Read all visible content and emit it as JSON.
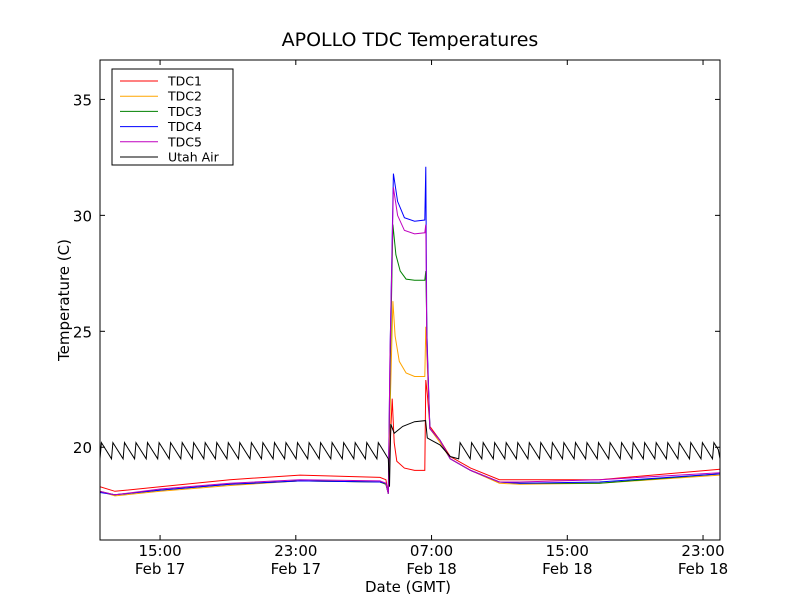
{
  "chart_data": {
    "type": "line",
    "title": "APOLLO TDC Temperatures",
    "xlabel": "Date (GMT)",
    "ylabel": "Temperature (C)",
    "x_units": "hours since Feb 17 00:00 GMT",
    "xlim": [
      11.46,
      48.0
    ],
    "ylim": [
      16.0,
      36.7
    ],
    "grid": false,
    "legend_placement": "top-left",
    "yticks": [
      20,
      25,
      30,
      35
    ],
    "xticks": [
      {
        "value": 15,
        "line1": "15:00",
        "line2": "Feb 17"
      },
      {
        "value": 23,
        "line1": "23:00",
        "line2": "Feb 17"
      },
      {
        "value": 31,
        "line1": "07:00",
        "line2": "Feb 18"
      },
      {
        "value": 39,
        "line1": "15:00",
        "line2": "Feb 18"
      },
      {
        "value": 47,
        "line1": "23:00",
        "line2": "Feb 18"
      }
    ],
    "series": [
      {
        "name": "TDC1",
        "color": "#ff0000",
        "points": [
          [
            11.46,
            18.3
          ],
          [
            12.34,
            18.1
          ],
          [
            15,
            18.3
          ],
          [
            19.12,
            18.6
          ],
          [
            23.25,
            18.8
          ],
          [
            27.96,
            18.7
          ],
          [
            28.31,
            18.6
          ],
          [
            28.45,
            18.0
          ],
          [
            28.55,
            20.0
          ],
          [
            28.68,
            22.1
          ],
          [
            28.8,
            20.2
          ],
          [
            28.95,
            19.4
          ],
          [
            29.4,
            19.1
          ],
          [
            30.0,
            19.0
          ],
          [
            30.6,
            19.0
          ],
          [
            30.66,
            22.9
          ],
          [
            30.75,
            22.3
          ],
          [
            30.9,
            20.9
          ],
          [
            31.5,
            20.3
          ],
          [
            32.1,
            19.6
          ],
          [
            33.3,
            19.1
          ],
          [
            35.0,
            18.6
          ],
          [
            36.2,
            18.6
          ],
          [
            40.9,
            18.6
          ],
          [
            48,
            19.05
          ]
        ]
      },
      {
        "name": "TDC2",
        "color": "#ffa500",
        "points": [
          [
            11.46,
            18.1
          ],
          [
            12.34,
            17.9
          ],
          [
            15,
            18.1
          ],
          [
            19.12,
            18.35
          ],
          [
            23.25,
            18.55
          ],
          [
            27.96,
            18.5
          ],
          [
            28.31,
            18.4
          ],
          [
            28.45,
            18.0
          ],
          [
            28.55,
            21.5
          ],
          [
            28.72,
            26.3
          ],
          [
            28.85,
            24.8
          ],
          [
            29.1,
            23.7
          ],
          [
            29.5,
            23.2
          ],
          [
            30.0,
            23.05
          ],
          [
            30.6,
            23.05
          ],
          [
            30.66,
            25.2
          ],
          [
            30.75,
            23.5
          ],
          [
            30.9,
            20.8
          ],
          [
            31.5,
            20.2
          ],
          [
            32.1,
            19.5
          ],
          [
            33.3,
            19.0
          ],
          [
            35.0,
            18.45
          ],
          [
            36.2,
            18.4
          ],
          [
            40.9,
            18.45
          ],
          [
            48,
            18.8
          ]
        ]
      },
      {
        "name": "TDC3",
        "color": "#008000",
        "points": [
          [
            11.46,
            18.1
          ],
          [
            12.34,
            17.95
          ],
          [
            15,
            18.15
          ],
          [
            19.12,
            18.4
          ],
          [
            23.25,
            18.55
          ],
          [
            27.96,
            18.5
          ],
          [
            28.31,
            18.4
          ],
          [
            28.45,
            18.0
          ],
          [
            28.55,
            23.0
          ],
          [
            28.72,
            29.6
          ],
          [
            28.9,
            28.3
          ],
          [
            29.15,
            27.6
          ],
          [
            29.5,
            27.25
          ],
          [
            30.0,
            27.2
          ],
          [
            30.6,
            27.2
          ],
          [
            30.66,
            27.6
          ],
          [
            30.75,
            24.0
          ],
          [
            30.9,
            20.8
          ],
          [
            31.5,
            20.3
          ],
          [
            32.1,
            19.5
          ],
          [
            33.3,
            19.0
          ],
          [
            35.0,
            18.5
          ],
          [
            36.2,
            18.45
          ],
          [
            40.9,
            18.45
          ],
          [
            48,
            18.85
          ]
        ]
      },
      {
        "name": "TDC4",
        "color": "#0000ff",
        "points": [
          [
            11.46,
            18.05
          ],
          [
            12.34,
            17.95
          ],
          [
            15,
            18.15
          ],
          [
            19.12,
            18.4
          ],
          [
            23.25,
            18.55
          ],
          [
            27.96,
            18.5
          ],
          [
            28.31,
            18.45
          ],
          [
            28.45,
            18.0
          ],
          [
            28.55,
            24.0
          ],
          [
            28.75,
            31.8
          ],
          [
            29.0,
            30.6
          ],
          [
            29.4,
            29.9
          ],
          [
            30.0,
            29.75
          ],
          [
            30.6,
            29.8
          ],
          [
            30.66,
            32.1
          ],
          [
            30.72,
            25.0
          ],
          [
            30.9,
            20.8
          ],
          [
            31.5,
            20.3
          ],
          [
            32.1,
            19.5
          ],
          [
            33.3,
            19.0
          ],
          [
            35.0,
            18.5
          ],
          [
            36.2,
            18.45
          ],
          [
            40.9,
            18.5
          ],
          [
            48,
            18.85
          ]
        ]
      },
      {
        "name": "TDC5",
        "color": "#bf00bf",
        "points": [
          [
            11.46,
            18.1
          ],
          [
            12.34,
            17.95
          ],
          [
            15,
            18.2
          ],
          [
            19.12,
            18.45
          ],
          [
            23.25,
            18.6
          ],
          [
            27.96,
            18.55
          ],
          [
            28.31,
            18.45
          ],
          [
            28.45,
            18.0
          ],
          [
            28.55,
            24.0
          ],
          [
            28.75,
            31.2
          ],
          [
            29.0,
            30.0
          ],
          [
            29.4,
            29.35
          ],
          [
            30.0,
            29.2
          ],
          [
            30.6,
            29.25
          ],
          [
            30.66,
            29.6
          ],
          [
            30.72,
            24.5
          ],
          [
            30.9,
            20.8
          ],
          [
            31.5,
            20.3
          ],
          [
            32.1,
            19.5
          ],
          [
            33.3,
            19.0
          ],
          [
            35.0,
            18.5
          ],
          [
            36.2,
            18.5
          ],
          [
            40.9,
            18.6
          ],
          [
            48,
            18.9
          ]
        ]
      },
      {
        "name": "Utah Air",
        "color": "#000000",
        "oscillation": {
          "period_hours": 0.68,
          "low": 19.5,
          "high": 20.2,
          "ranges": [
            [
              11.46,
              28.45
            ],
            [
              32.6,
              48.0
            ]
          ]
        },
        "points": [
          [
            28.45,
            19.5
          ],
          [
            28.52,
            18.3
          ],
          [
            28.6,
            21.0
          ],
          [
            28.8,
            20.6
          ],
          [
            29.3,
            20.9
          ],
          [
            30.0,
            21.1
          ],
          [
            30.65,
            21.15
          ],
          [
            30.75,
            20.4
          ],
          [
            31.0,
            20.3
          ],
          [
            31.5,
            20.1
          ],
          [
            32.1,
            19.6
          ],
          [
            32.6,
            19.5
          ]
        ]
      }
    ]
  }
}
